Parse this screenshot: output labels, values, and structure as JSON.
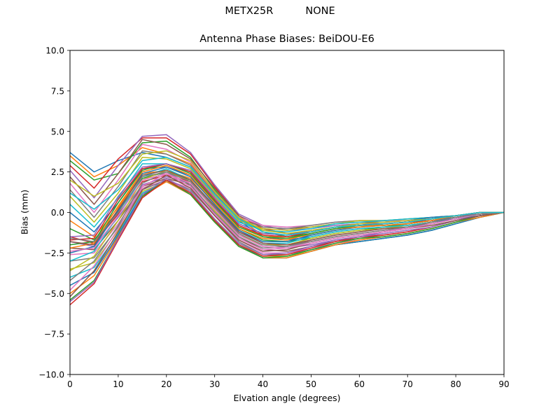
{
  "figure": {
    "suptitle": "METX25R          NONE"
  },
  "chart_data": {
    "type": "line",
    "title": "Antenna Phase Biases: BeiDOU-E6",
    "xlabel": "Elvation angle (degrees)",
    "ylabel": "Bias (mm)",
    "xlim": [
      0,
      90
    ],
    "ylim": [
      -10,
      10
    ],
    "xticks": [
      0,
      10,
      20,
      30,
      40,
      50,
      60,
      70,
      80,
      90
    ],
    "yticks": [
      -10.0,
      -7.5,
      -5.0,
      -2.5,
      0.0,
      2.5,
      5.0,
      7.5,
      10.0
    ],
    "ytick_labels": [
      "−10.0",
      "−7.5",
      "−5.0",
      "−2.5",
      "0.0",
      "2.5",
      "5.0",
      "7.5",
      "10.0"
    ],
    "grid": false,
    "legend": "none",
    "x": [
      0,
      5,
      10,
      15,
      20,
      25,
      30,
      35,
      40,
      45,
      50,
      55,
      60,
      65,
      70,
      75,
      80,
      85,
      90
    ],
    "colors": [
      "#1f77b4",
      "#ff7f0e",
      "#2ca02c",
      "#d62728",
      "#9467bd",
      "#8c564b",
      "#e377c2",
      "#7f7f7f",
      "#bcbd22",
      "#17becf"
    ],
    "series": [
      {
        "values": [
          3.7,
          2.5,
          3.2,
          3.7,
          3.4,
          2.8,
          1.0,
          -0.5,
          -1.5,
          -1.7,
          -1.5,
          -1.2,
          -1.0,
          -0.9,
          -0.8,
          -0.6,
          -0.4,
          -0.2,
          0.0
        ]
      },
      {
        "values": [
          3.5,
          2.2,
          2.9,
          4.0,
          3.6,
          3.0,
          1.2,
          -0.4,
          -1.4,
          -1.6,
          -1.4,
          -1.1,
          -0.9,
          -0.8,
          -0.7,
          -0.5,
          -0.3,
          -0.1,
          0.0
        ]
      },
      {
        "values": [
          3.2,
          2.0,
          2.4,
          4.3,
          4.4,
          3.4,
          1.4,
          -0.3,
          -1.2,
          -1.5,
          -1.3,
          -1.0,
          -0.8,
          -0.8,
          -0.7,
          -0.5,
          -0.3,
          -0.1,
          0.0
        ]
      },
      {
        "values": [
          2.9,
          1.5,
          3.3,
          4.6,
          4.6,
          3.6,
          1.6,
          -0.2,
          -1.0,
          -1.3,
          -1.2,
          -0.9,
          -0.8,
          -0.7,
          -0.6,
          -0.5,
          -0.3,
          -0.1,
          0.0
        ]
      },
      {
        "values": [
          2.6,
          0.9,
          2.9,
          4.7,
          4.8,
          3.7,
          1.7,
          -0.1,
          -0.8,
          -1.1,
          -1.0,
          -0.8,
          -0.7,
          -0.7,
          -0.6,
          -0.4,
          -0.2,
          -0.1,
          0.0
        ]
      },
      {
        "values": [
          2.2,
          0.5,
          2.4,
          4.5,
          4.2,
          3.3,
          1.5,
          -0.2,
          -0.9,
          -1.0,
          -0.9,
          -0.7,
          -0.6,
          -0.6,
          -0.5,
          -0.4,
          -0.2,
          0.0,
          0.0
        ]
      },
      {
        "values": [
          1.8,
          0.0,
          2.0,
          4.2,
          3.9,
          3.1,
          1.3,
          -0.3,
          -0.8,
          -0.9,
          -0.8,
          -0.6,
          -0.5,
          -0.5,
          -0.5,
          -0.4,
          -0.2,
          0.0,
          0.0
        ]
      },
      {
        "values": [
          1.4,
          -0.3,
          1.6,
          3.8,
          3.6,
          2.9,
          1.2,
          -0.4,
          -0.9,
          -1.0,
          -0.8,
          -0.6,
          -0.5,
          -0.5,
          -0.4,
          -0.3,
          -0.2,
          0.0,
          0.0
        ]
      },
      {
        "values": [
          1.0,
          -0.6,
          1.2,
          3.4,
          3.3,
          2.7,
          1.0,
          -0.5,
          -1.0,
          -1.1,
          -0.9,
          -0.7,
          -0.5,
          -0.5,
          -0.4,
          -0.3,
          -0.2,
          0.0,
          0.0
        ]
      },
      {
        "values": [
          0.5,
          -0.9,
          0.9,
          3.0,
          3.0,
          2.5,
          0.9,
          -0.6,
          -1.1,
          -1.2,
          -1.0,
          -0.7,
          -0.6,
          -0.5,
          -0.4,
          -0.3,
          -0.2,
          0.0,
          0.0
        ]
      },
      {
        "values": [
          0.0,
          -1.2,
          0.6,
          2.7,
          2.8,
          2.3,
          0.7,
          -0.7,
          -1.3,
          -1.4,
          -1.2,
          -0.9,
          -0.7,
          -0.6,
          -0.5,
          -0.3,
          -0.2,
          0.0,
          0.0
        ]
      },
      {
        "values": [
          -0.5,
          -1.5,
          0.3,
          2.4,
          2.6,
          2.1,
          0.6,
          -0.8,
          -1.5,
          -1.6,
          -1.4,
          -1.1,
          -0.9,
          -0.7,
          -0.6,
          -0.4,
          -0.2,
          0.0,
          0.0
        ]
      },
      {
        "values": [
          -1.0,
          -1.7,
          0.1,
          2.1,
          2.5,
          2.0,
          0.4,
          -1.0,
          -1.7,
          -1.8,
          -1.6,
          -1.3,
          -1.1,
          -0.9,
          -0.7,
          -0.5,
          -0.2,
          0.0,
          0.0
        ]
      },
      {
        "values": [
          -1.5,
          -1.9,
          -0.1,
          1.9,
          2.3,
          1.9,
          0.3,
          -1.1,
          -1.9,
          -2.0,
          -1.8,
          -1.5,
          -1.3,
          -1.1,
          -0.9,
          -0.6,
          -0.3,
          -0.1,
          0.0
        ]
      },
      {
        "values": [
          -1.8,
          -2.1,
          -0.3,
          1.7,
          2.2,
          1.8,
          0.2,
          -1.3,
          -2.1,
          -2.2,
          -2.0,
          -1.7,
          -1.5,
          -1.2,
          -1.0,
          -0.7,
          -0.4,
          -0.1,
          0.0
        ]
      },
      {
        "values": [
          -2.2,
          -2.3,
          -0.5,
          1.6,
          2.1,
          1.7,
          0.0,
          -1.5,
          -2.3,
          -2.4,
          -2.1,
          -1.8,
          -1.6,
          -1.4,
          -1.2,
          -0.9,
          -0.5,
          -0.2,
          0.0
        ]
      },
      {
        "values": [
          -2.6,
          -2.5,
          -0.7,
          1.5,
          2.0,
          1.5,
          -0.1,
          -1.7,
          -2.5,
          -2.5,
          -2.2,
          -1.9,
          -1.7,
          -1.5,
          -1.3,
          -1.0,
          -0.6,
          -0.2,
          0.0
        ]
      },
      {
        "values": [
          -3.0,
          -2.8,
          -0.9,
          1.4,
          2.0,
          1.4,
          -0.2,
          -1.8,
          -2.6,
          -2.6,
          -2.3,
          -2.0,
          -1.8,
          -1.6,
          -1.4,
          -1.1,
          -0.7,
          -0.3,
          0.0
        ]
      },
      {
        "values": [
          -3.5,
          -3.1,
          -1.1,
          1.3,
          1.9,
          1.3,
          -0.4,
          -1.9,
          -2.7,
          -2.7,
          -2.4,
          -2.0,
          -1.8,
          -1.6,
          -1.4,
          -1.1,
          -0.7,
          -0.3,
          0.0
        ]
      },
      {
        "values": [
          -4.0,
          -3.4,
          -1.3,
          1.2,
          1.9,
          1.2,
          -0.5,
          -2.0,
          -2.8,
          -2.8,
          -2.4,
          -2.0,
          -1.8,
          -1.6,
          -1.4,
          -1.1,
          -0.7,
          -0.3,
          0.0
        ]
      },
      {
        "values": [
          -4.5,
          -3.7,
          -1.4,
          1.1,
          1.9,
          1.1,
          -0.6,
          -2.0,
          -2.8,
          -2.8,
          -2.4,
          -2.0,
          -1.8,
          -1.6,
          -1.4,
          -1.1,
          -0.7,
          -0.3,
          0.0
        ]
      },
      {
        "values": [
          -5.0,
          -3.9,
          -1.5,
          1.0,
          1.9,
          1.1,
          -0.6,
          -2.1,
          -2.8,
          -2.8,
          -2.4,
          -2.0,
          -1.7,
          -1.5,
          -1.3,
          -1.0,
          -0.6,
          -0.3,
          0.0
        ]
      },
      {
        "values": [
          -5.4,
          -4.2,
          -1.6,
          1.0,
          2.0,
          1.1,
          -0.6,
          -2.1,
          -2.8,
          -2.7,
          -2.3,
          -1.9,
          -1.6,
          -1.5,
          -1.3,
          -1.0,
          -0.6,
          -0.2,
          0.0
        ]
      },
      {
        "values": [
          -5.7,
          -4.4,
          -1.7,
          0.9,
          2.0,
          1.2,
          -0.5,
          -2.0,
          -2.7,
          -2.6,
          -2.2,
          -1.8,
          -1.5,
          -1.4,
          -1.2,
          -0.9,
          -0.5,
          -0.2,
          0.0
        ]
      },
      {
        "values": [
          -5.5,
          -4.3,
          -1.6,
          1.1,
          2.1,
          1.3,
          -0.4,
          -1.9,
          -2.6,
          -2.5,
          -2.1,
          -1.7,
          -1.5,
          -1.3,
          -1.1,
          -0.9,
          -0.5,
          -0.2,
          0.0
        ]
      },
      {
        "values": [
          -5.2,
          -3.6,
          -1.2,
          1.4,
          2.3,
          1.5,
          -0.2,
          -1.7,
          -2.4,
          -2.3,
          -1.9,
          -1.6,
          -1.4,
          -1.2,
          -1.0,
          -0.8,
          -0.5,
          -0.2,
          0.0
        ]
      },
      {
        "values": [
          -4.8,
          -3.3,
          -1.0,
          1.6,
          2.4,
          1.6,
          -0.1,
          -1.6,
          -2.3,
          -2.2,
          -1.8,
          -1.5,
          -1.3,
          -1.1,
          -1.0,
          -0.7,
          -0.4,
          -0.1,
          0.0
        ]
      },
      {
        "values": [
          -4.2,
          -3.0,
          -0.8,
          1.8,
          2.5,
          1.7,
          0.0,
          -1.5,
          -2.2,
          -2.1,
          -1.7,
          -1.4,
          -1.2,
          -1.0,
          -0.9,
          -0.7,
          -0.4,
          -0.1,
          0.0
        ]
      },
      {
        "values": [
          -3.6,
          -2.7,
          -0.5,
          2.0,
          2.6,
          1.9,
          0.1,
          -1.4,
          -2.0,
          -2.0,
          -1.6,
          -1.3,
          -1.1,
          -1.0,
          -0.8,
          -0.6,
          -0.3,
          -0.1,
          0.0
        ]
      },
      {
        "values": [
          -3.0,
          -2.4,
          -0.2,
          2.2,
          2.7,
          2.0,
          0.3,
          -1.2,
          -1.9,
          -1.9,
          -1.5,
          -1.2,
          -1.0,
          -0.9,
          -0.8,
          -0.6,
          -0.3,
          -0.1,
          0.0
        ]
      },
      {
        "values": [
          -2.5,
          -2.1,
          0.1,
          2.4,
          2.8,
          2.2,
          0.5,
          -1.1,
          -1.8,
          -1.8,
          -1.4,
          -1.1,
          -0.9,
          -0.8,
          -0.7,
          -0.5,
          -0.3,
          -0.1,
          0.0
        ]
      },
      {
        "values": [
          -2.2,
          -1.9,
          0.4,
          2.5,
          2.9,
          2.3,
          0.6,
          -1.0,
          -1.6,
          -1.7,
          -1.3,
          -1.0,
          -0.9,
          -0.8,
          -0.7,
          -0.5,
          -0.2,
          0.0,
          0.0
        ]
      },
      {
        "values": [
          -2.0,
          -1.8,
          0.6,
          2.6,
          3.0,
          2.4,
          0.7,
          -0.9,
          -1.5,
          -1.6,
          -1.3,
          -1.0,
          -0.8,
          -0.7,
          -0.6,
          -0.4,
          -0.2,
          0.0,
          0.0
        ]
      },
      {
        "values": [
          -1.7,
          -1.6,
          0.8,
          2.7,
          3.0,
          2.5,
          0.8,
          -0.8,
          -1.4,
          -1.5,
          -1.2,
          -0.9,
          -0.8,
          -0.7,
          -0.6,
          -0.4,
          -0.2,
          0.0,
          0.0
        ]
      },
      {
        "values": [
          -1.5,
          -1.4,
          1.0,
          2.8,
          3.0,
          2.6,
          0.9,
          -0.7,
          -1.3,
          -1.4,
          -1.1,
          -0.9,
          -0.7,
          -0.6,
          -0.5,
          -0.4,
          -0.2,
          0.0,
          0.0
        ]
      },
      {
        "values": [
          -1.8,
          -2.0,
          0.2,
          2.3,
          2.6,
          2.0,
          0.4,
          -1.2,
          -1.9,
          -2.0,
          -1.7,
          -1.4,
          -1.2,
          -1.0,
          -0.9,
          -0.6,
          -0.3,
          -0.1,
          0.0
        ]
      },
      {
        "values": [
          -2.4,
          -2.2,
          -0.2,
          2.0,
          2.4,
          1.8,
          0.2,
          -1.4,
          -2.1,
          -2.2,
          -1.9,
          -1.6,
          -1.4,
          -1.2,
          -1.0,
          -0.7,
          -0.4,
          -0.1,
          0.0
        ]
      },
      {
        "values": [
          -1.6,
          -1.8,
          0.0,
          2.2,
          2.5,
          1.9,
          0.3,
          -1.3,
          -2.0,
          -2.1,
          -1.8,
          -1.5,
          -1.3,
          -1.1,
          -0.9,
          -0.6,
          -0.3,
          -0.1,
          0.0
        ]
      },
      {
        "values": [
          2.0,
          1.0,
          1.8,
          3.6,
          3.8,
          3.2,
          1.3,
          -0.3,
          -1.1,
          -1.3,
          -1.1,
          -0.9,
          -0.7,
          -0.6,
          -0.5,
          -0.4,
          -0.2,
          0.0,
          0.0
        ]
      },
      {
        "values": [
          1.2,
          0.2,
          1.4,
          3.2,
          3.4,
          2.8,
          1.1,
          -0.4,
          -1.2,
          -1.4,
          -1.2,
          -0.9,
          -0.8,
          -0.7,
          -0.6,
          -0.4,
          -0.2,
          0.0,
          0.0
        ]
      }
    ]
  }
}
